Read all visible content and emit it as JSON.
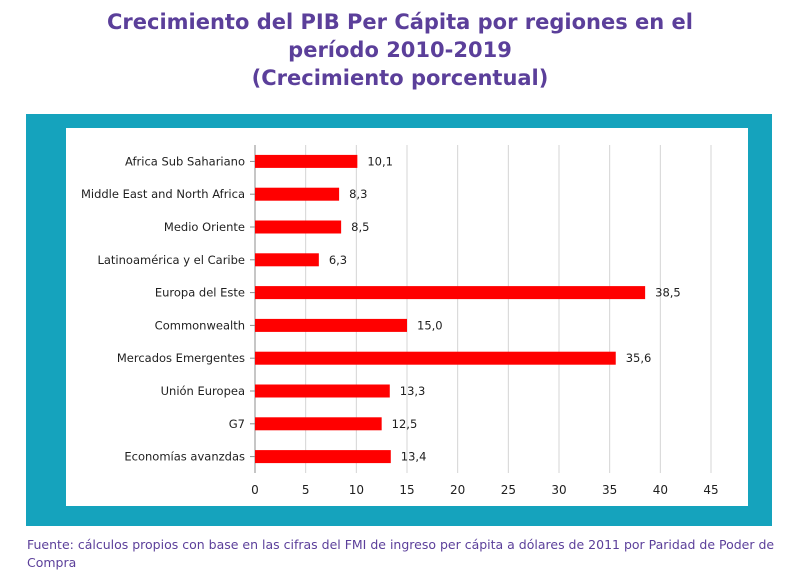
{
  "title_lines": [
    "Crecimiento del PIB Per Cápita por regiones en el",
    "período 2010-2019",
    "(Crecimiento porcentual)"
  ],
  "source": "Fuente: cálculos propios con base en las cifras del FMI de ingreso per cápita a dólares de 2011 por Paridad de Poder de Compra",
  "colors": {
    "bar": "#ff0000",
    "frame": "#15a3bd",
    "title": "#5b3f9a"
  },
  "chart_data": {
    "type": "bar",
    "orientation": "horizontal",
    "categories": [
      "Africa Sub Sahariano",
      "Middle East and North Africa",
      "Medio Oriente",
      "Latinoamérica y el Caribe",
      "Europa del Este",
      "Commonwealth",
      "Mercados Emergentes",
      "Unión Europea",
      "G7",
      "Economías avanzdas"
    ],
    "values": [
      10.1,
      8.3,
      8.5,
      6.3,
      38.5,
      15.0,
      35.6,
      13.3,
      12.5,
      13.4
    ],
    "value_labels": [
      "10,1",
      "8,3",
      "8,5",
      "6,3",
      "38,5",
      "15,0",
      "35,6",
      "13,3",
      "12,5",
      "13,4"
    ],
    "xlim": [
      0,
      45
    ],
    "xticks": [
      0,
      5,
      10,
      15,
      20,
      25,
      30,
      35,
      40,
      45
    ],
    "grid": true
  }
}
